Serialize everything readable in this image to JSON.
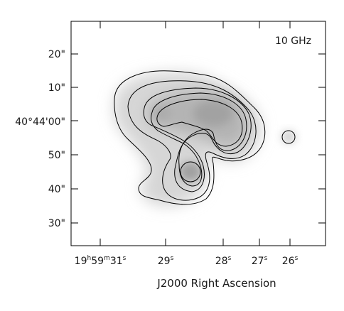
{
  "image": {
    "frequency_label": "10 GHz",
    "x_axis_title": "J2000 Right Ascension",
    "y_ticks": [
      {
        "label": "20\"",
        "main": null
      },
      {
        "label": "10\"",
        "main": null
      },
      {
        "label": "",
        "main": "40°44'00\""
      },
      {
        "label": "50\"",
        "main": null
      },
      {
        "label": "40\"",
        "main": null
      },
      {
        "label": "30\"",
        "main": null
      }
    ],
    "x_ticks": [
      {
        "h": "19",
        "m": "59",
        "s": "31"
      },
      {
        "s": "29"
      },
      {
        "s": "28"
      },
      {
        "s": "27"
      },
      {
        "s": "26"
      }
    ],
    "colors": {
      "frame": "#000000",
      "background": "#ffffff",
      "emission": "#8c8c8c"
    }
  }
}
